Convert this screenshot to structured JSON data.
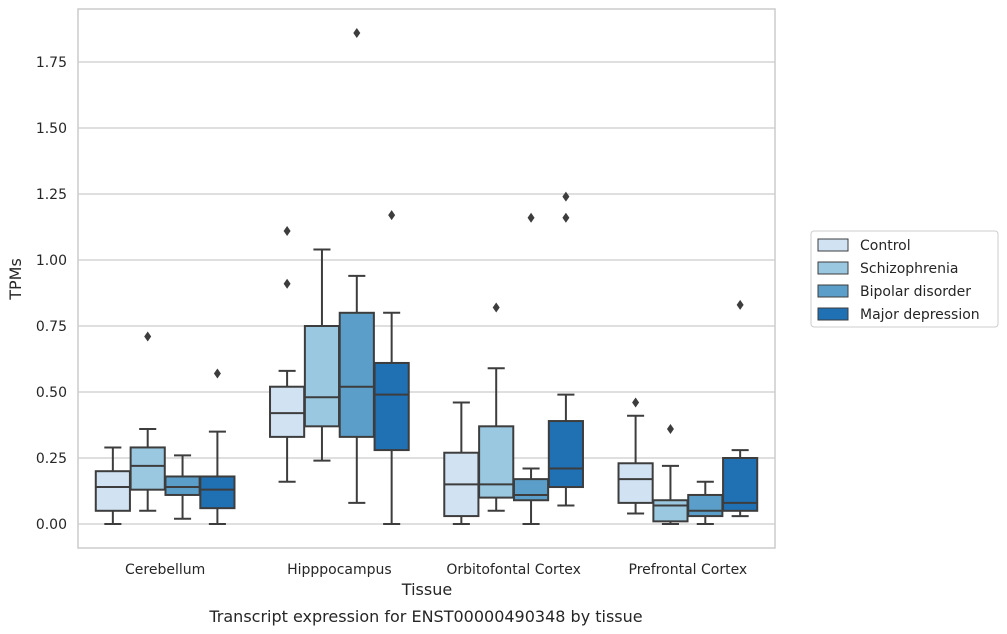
{
  "chart_data": {
    "type": "boxplot",
    "caption": "Transcript expression for ENST00000490348 by tissue",
    "xlabel": "Tissue",
    "ylabel": "TPMs",
    "ylim": [
      -0.09,
      1.96
    ],
    "yticks": [
      "0.00",
      "0.25",
      "0.50",
      "0.75",
      "1.00",
      "1.25",
      "1.50",
      "1.75"
    ],
    "grid": "horizontal",
    "legend_position": "right",
    "categories": [
      "Cerebellum",
      "Hipppocampus",
      "Orbitofontal Cortex",
      "Prefrontal Cortex"
    ],
    "series": [
      {
        "name": "Control",
        "color": "#d1e2f2",
        "boxes": [
          {
            "whislo": 0.0,
            "q1": 0.05,
            "med": 0.14,
            "q3": 0.2,
            "whishi": 0.29,
            "fliers": []
          },
          {
            "whislo": 0.16,
            "q1": 0.33,
            "med": 0.42,
            "q3": 0.52,
            "whishi": 0.58,
            "fliers": [
              0.91,
              1.11
            ]
          },
          {
            "whislo": 0.0,
            "q1": 0.03,
            "med": 0.15,
            "q3": 0.27,
            "whishi": 0.46,
            "fliers": []
          },
          {
            "whislo": 0.04,
            "q1": 0.08,
            "med": 0.17,
            "q3": 0.23,
            "whishi": 0.41,
            "fliers": [
              0.46
            ]
          }
        ]
      },
      {
        "name": "Schizophrenia",
        "color": "#9ac8e0",
        "boxes": [
          {
            "whislo": 0.05,
            "q1": 0.13,
            "med": 0.22,
            "q3": 0.29,
            "whishi": 0.36,
            "fliers": [
              0.71
            ]
          },
          {
            "whislo": 0.24,
            "q1": 0.37,
            "med": 0.48,
            "q3": 0.75,
            "whishi": 1.04,
            "fliers": []
          },
          {
            "whislo": 0.05,
            "q1": 0.1,
            "med": 0.15,
            "q3": 0.37,
            "whishi": 0.59,
            "fliers": [
              0.82
            ]
          },
          {
            "whislo": 0.0,
            "q1": 0.01,
            "med": 0.07,
            "q3": 0.09,
            "whishi": 0.22,
            "fliers": [
              0.36
            ]
          }
        ]
      },
      {
        "name": "Bipolar disorder",
        "color": "#5a9ec9",
        "boxes": [
          {
            "whislo": 0.02,
            "q1": 0.11,
            "med": 0.14,
            "q3": 0.18,
            "whishi": 0.26,
            "fliers": []
          },
          {
            "whislo": 0.08,
            "q1": 0.33,
            "med": 0.52,
            "q3": 0.8,
            "whishi": 0.94,
            "fliers": [
              1.86
            ]
          },
          {
            "whislo": 0.0,
            "q1": 0.09,
            "med": 0.11,
            "q3": 0.17,
            "whishi": 0.21,
            "fliers": [
              1.16
            ]
          },
          {
            "whislo": 0.0,
            "q1": 0.03,
            "med": 0.05,
            "q3": 0.11,
            "whishi": 0.16,
            "fliers": []
          }
        ]
      },
      {
        "name": "Major depression",
        "color": "#2070b4",
        "boxes": [
          {
            "whislo": 0.0,
            "q1": 0.06,
            "med": 0.13,
            "q3": 0.18,
            "whishi": 0.35,
            "fliers": [
              0.57
            ]
          },
          {
            "whislo": 0.0,
            "q1": 0.28,
            "med": 0.49,
            "q3": 0.61,
            "whishi": 0.8,
            "fliers": [
              1.17
            ]
          },
          {
            "whislo": 0.07,
            "q1": 0.14,
            "med": 0.21,
            "q3": 0.39,
            "whishi": 0.49,
            "fliers": [
              1.16,
              1.24
            ]
          },
          {
            "whislo": 0.03,
            "q1": 0.05,
            "med": 0.08,
            "q3": 0.25,
            "whishi": 0.28,
            "fliers": [
              0.83
            ]
          }
        ]
      }
    ]
  }
}
